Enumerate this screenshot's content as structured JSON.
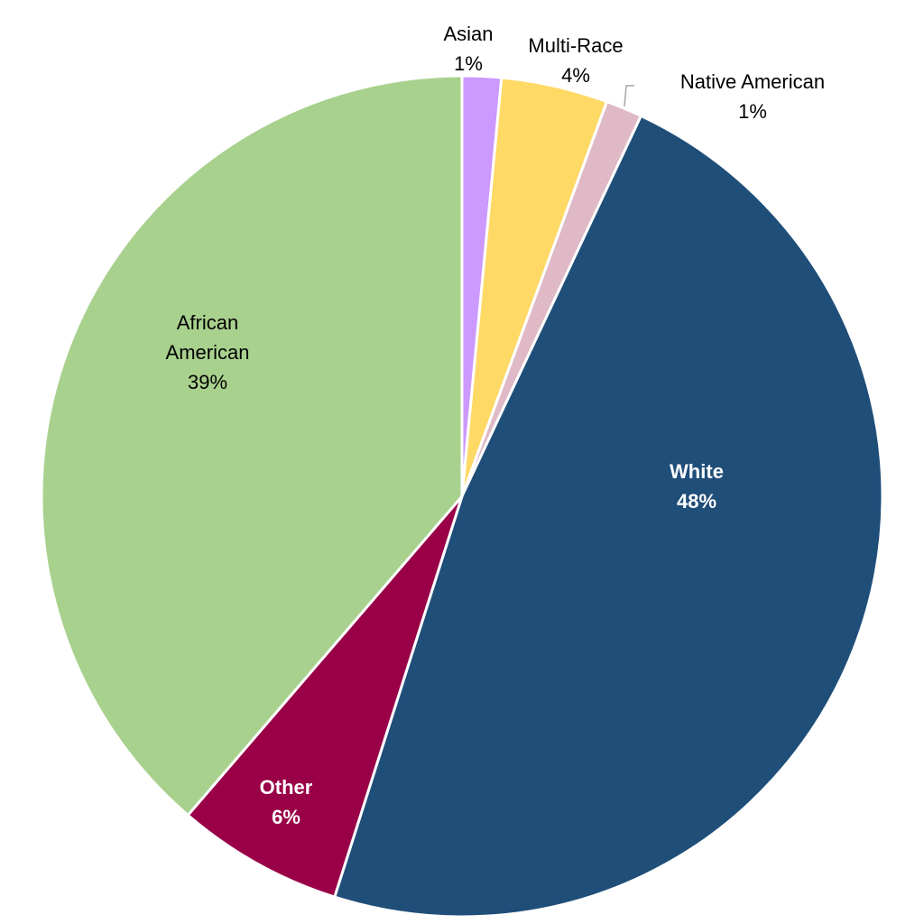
{
  "chart_data": {
    "type": "pie",
    "start_angle_deg": 0,
    "direction": "clockwise",
    "legend": "none",
    "slices": [
      {
        "name": "Asian",
        "value": 1.5,
        "label": "1%",
        "color": "#cc99ff"
      },
      {
        "name": "Multi-Race",
        "value": 4.1,
        "label": "4%",
        "color": "#ffd966"
      },
      {
        "name": "Native American",
        "value": 1.4,
        "label": "1%",
        "color": "#dfb9c6"
      },
      {
        "name": "White",
        "value": 47.9,
        "label": "48%",
        "color": "#1f4e79"
      },
      {
        "name": "Other",
        "value": 6.4,
        "label": "6%",
        "color": "#990047"
      },
      {
        "name": "African American",
        "value": 38.7,
        "label": "39%",
        "color": "#a9d18e"
      }
    ]
  }
}
